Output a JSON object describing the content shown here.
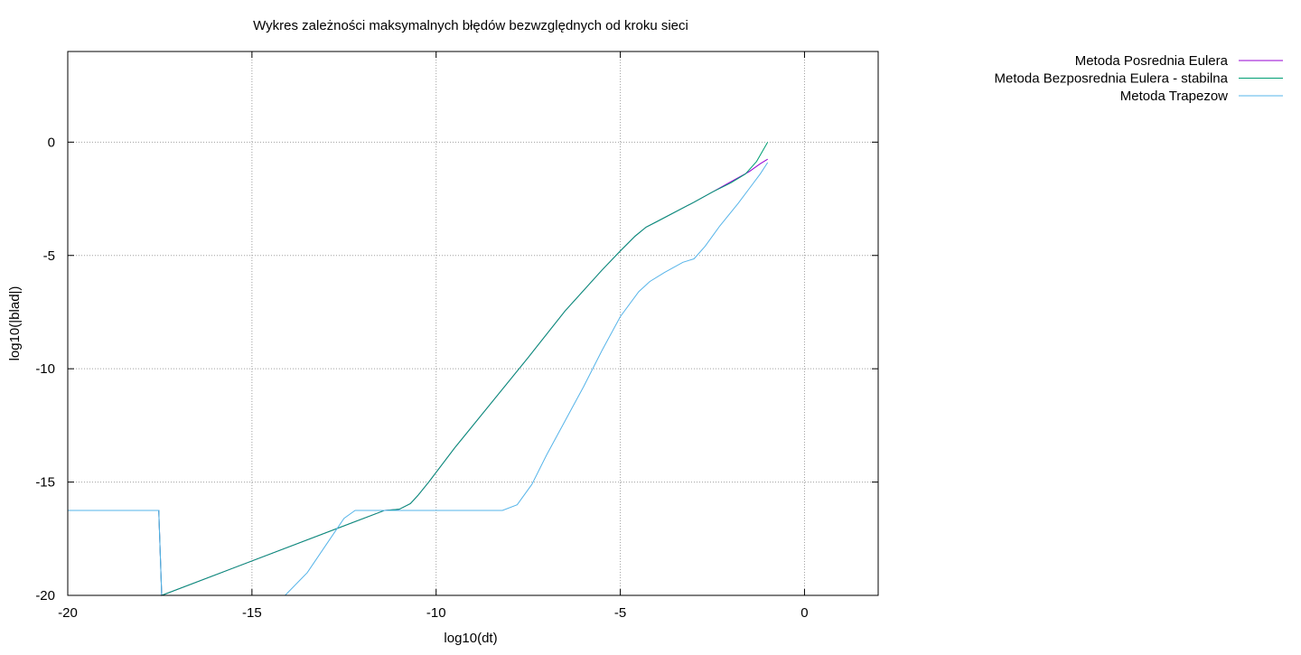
{
  "chart_data": {
    "type": "line",
    "title": "Wykres zależności maksymalnych błędów bezwzględnych od kroku sieci",
    "xlabel": "log10(dt)",
    "ylabel": "log10(|blad|)",
    "xlim": [
      -20,
      2
    ],
    "ylim": [
      -20,
      4
    ],
    "xticks": [
      -20,
      -15,
      -10,
      -5,
      0
    ],
    "yticks": [
      0,
      -5,
      -10,
      -15,
      -20
    ],
    "grid": true,
    "legend_position": "top-right, outside plot",
    "series": [
      {
        "name": "Metoda Posrednia Eulera",
        "color": "#9400d3",
        "points": [
          [
            -20,
            -16.25
          ],
          [
            -17.53,
            -16.25
          ],
          [
            -17.45,
            -20
          ],
          [
            -11.4,
            -16.25
          ],
          [
            -11.0,
            -16.2
          ],
          [
            -10.7,
            -15.95
          ],
          [
            -10.5,
            -15.6
          ],
          [
            -10.2,
            -15.0
          ],
          [
            -9.5,
            -13.5
          ],
          [
            -8.5,
            -11.5
          ],
          [
            -7.5,
            -9.5
          ],
          [
            -6.5,
            -7.45
          ],
          [
            -5.5,
            -5.65
          ],
          [
            -5.0,
            -4.8
          ],
          [
            -4.6,
            -4.15
          ],
          [
            -4.3,
            -3.75
          ],
          [
            -4.0,
            -3.5
          ],
          [
            -3.0,
            -2.65
          ],
          [
            -2.5,
            -2.2
          ],
          [
            -2.0,
            -1.75
          ],
          [
            -1.5,
            -1.3
          ],
          [
            -1.2,
            -0.95
          ],
          [
            -1.0,
            -0.75
          ]
        ]
      },
      {
        "name": "Metoda Bezposrednia Eulera - stabilna",
        "color": "#009e73",
        "points": [
          [
            -20,
            -16.25
          ],
          [
            -17.53,
            -16.25
          ],
          [
            -17.45,
            -20
          ],
          [
            -11.4,
            -16.25
          ],
          [
            -11.0,
            -16.2
          ],
          [
            -10.7,
            -15.95
          ],
          [
            -10.5,
            -15.6
          ],
          [
            -10.2,
            -15.0
          ],
          [
            -9.5,
            -13.5
          ],
          [
            -8.5,
            -11.5
          ],
          [
            -7.5,
            -9.5
          ],
          [
            -6.5,
            -7.45
          ],
          [
            -5.5,
            -5.65
          ],
          [
            -5.0,
            -4.8
          ],
          [
            -4.6,
            -4.15
          ],
          [
            -4.3,
            -3.75
          ],
          [
            -4.0,
            -3.5
          ],
          [
            -3.0,
            -2.65
          ],
          [
            -2.5,
            -2.2
          ],
          [
            -2.0,
            -1.8
          ],
          [
            -1.6,
            -1.4
          ],
          [
            -1.3,
            -0.85
          ],
          [
            -1.0,
            0.0
          ]
        ]
      },
      {
        "name": "Metoda Trapezow",
        "color": "#56b4e9",
        "points": [
          [
            -20,
            -16.25
          ],
          [
            -17.53,
            -16.25
          ],
          [
            -17.45,
            -20
          ],
          [
            -14.1,
            -20
          ],
          [
            -13.5,
            -19.0
          ],
          [
            -13.0,
            -17.8
          ],
          [
            -12.5,
            -16.6
          ],
          [
            -12.2,
            -16.25
          ],
          [
            -8.2,
            -16.25
          ],
          [
            -7.8,
            -16.0
          ],
          [
            -7.4,
            -15.1
          ],
          [
            -7.0,
            -13.8
          ],
          [
            -6.5,
            -12.3
          ],
          [
            -6.0,
            -10.8
          ],
          [
            -5.5,
            -9.2
          ],
          [
            -5.0,
            -7.7
          ],
          [
            -4.5,
            -6.6
          ],
          [
            -4.2,
            -6.15
          ],
          [
            -3.8,
            -5.75
          ],
          [
            -3.3,
            -5.3
          ],
          [
            -3.0,
            -5.15
          ],
          [
            -2.7,
            -4.6
          ],
          [
            -2.3,
            -3.7
          ],
          [
            -1.8,
            -2.7
          ],
          [
            -1.5,
            -2.05
          ],
          [
            -1.2,
            -1.4
          ],
          [
            -1.0,
            -0.9
          ]
        ]
      }
    ]
  }
}
